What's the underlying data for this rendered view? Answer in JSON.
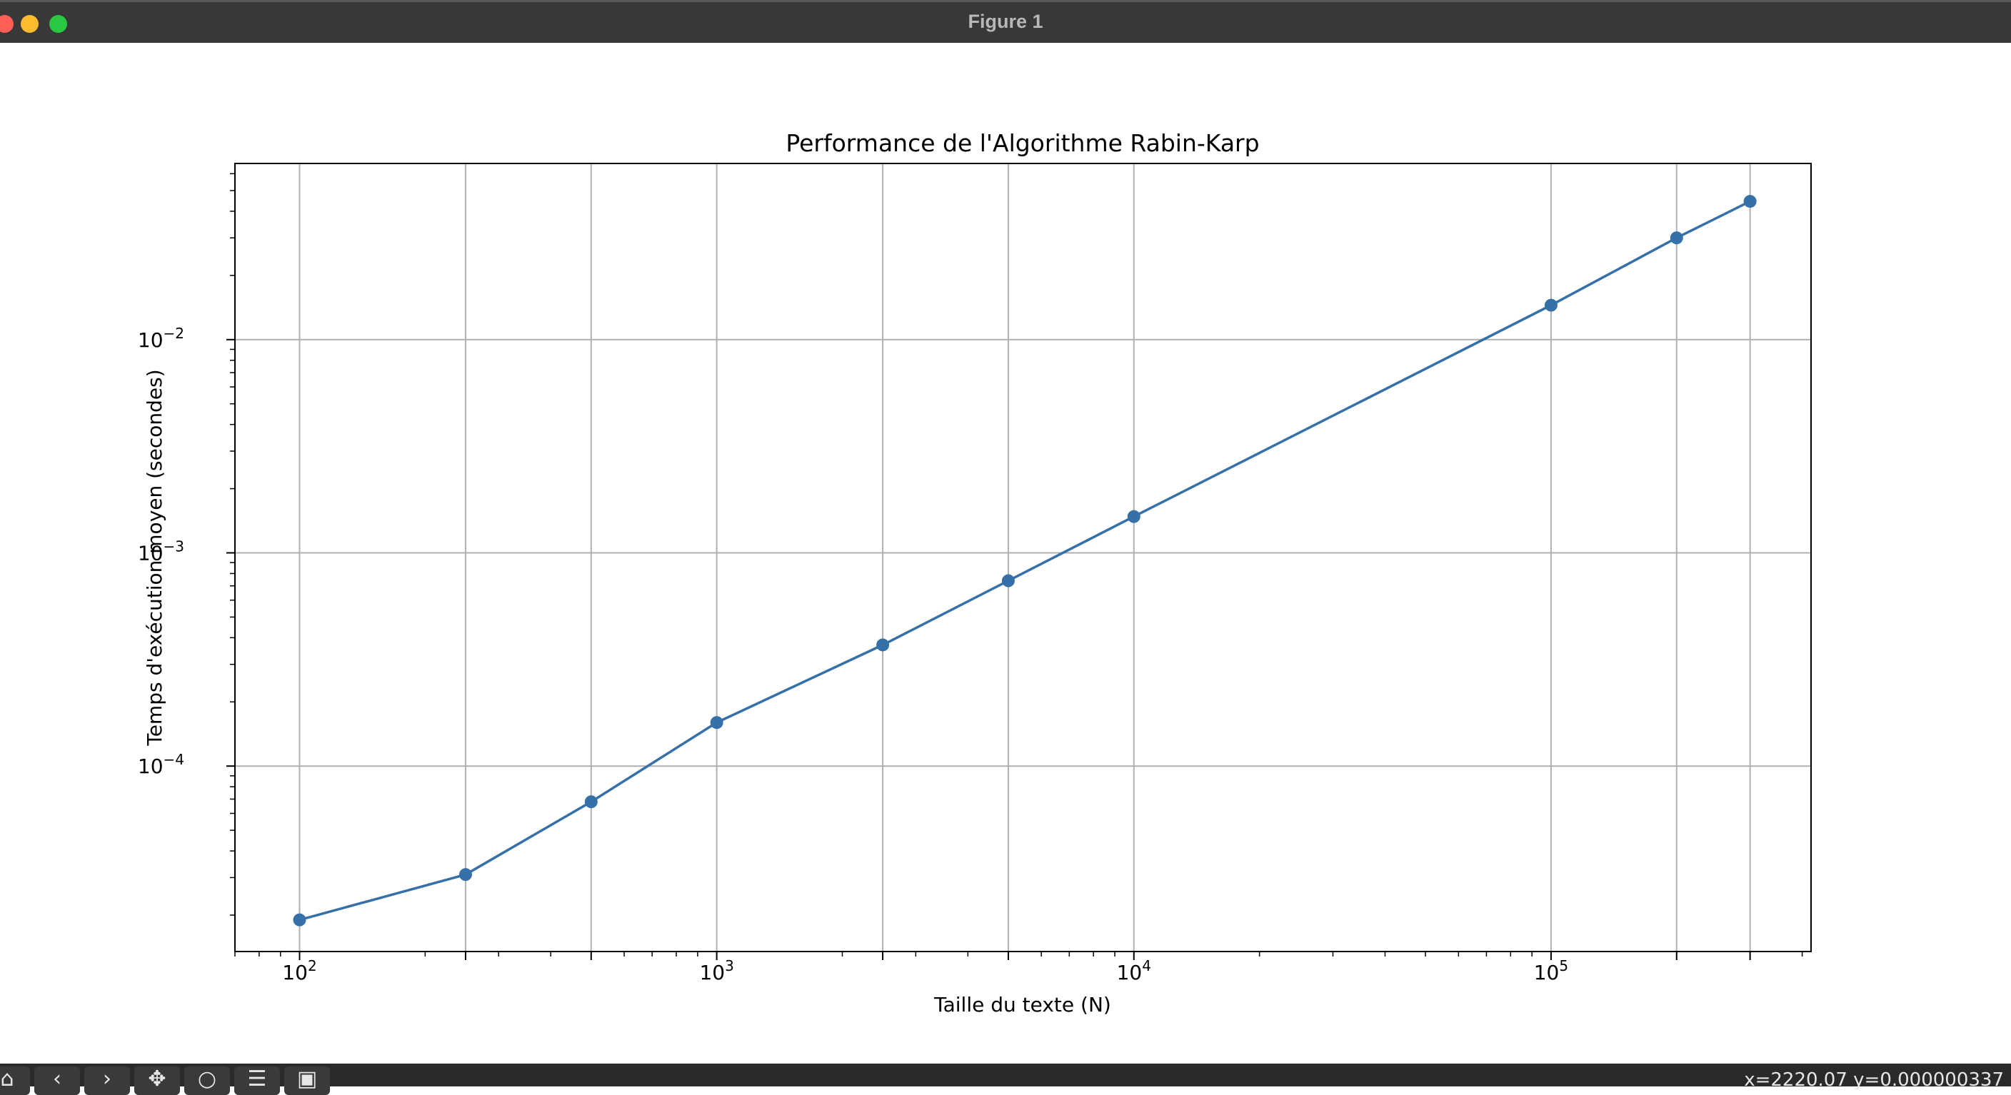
{
  "window": {
    "title": "Figure 1",
    "controls": [
      "close",
      "minimize",
      "maximize"
    ]
  },
  "toolbar": {
    "buttons": [
      {
        "name": "home-icon",
        "glyph": "⌂"
      },
      {
        "name": "back-icon",
        "glyph": "‹"
      },
      {
        "name": "forward-icon",
        "glyph": "›"
      },
      {
        "name": "pan-icon",
        "glyph": "✥"
      },
      {
        "name": "zoom-icon",
        "glyph": "○"
      },
      {
        "name": "configure-icon",
        "glyph": "☰"
      },
      {
        "name": "save-icon",
        "glyph": "▣"
      }
    ],
    "readout": "x=2220.07  y=0.000000337"
  },
  "chart_data": {
    "type": "line",
    "title": "Performance de l'Algorithme Rabin-Karp",
    "xlabel": "Taille du texte (N)",
    "ylabel": "Temps d'exécution moyen (secondes)",
    "xscale": "log",
    "yscale": "log",
    "xlim": [
      70,
      420000
    ],
    "ylim": [
      1.35e-05,
      0.067
    ],
    "xticks": [
      {
        "value": 100,
        "base": "10",
        "exp": "2"
      },
      {
        "value": 1000,
        "base": "10",
        "exp": "3"
      },
      {
        "value": 10000,
        "base": "10",
        "exp": "4"
      },
      {
        "value": 100000,
        "base": "10",
        "exp": "5"
      }
    ],
    "yticks": [
      {
        "value": 0.0001,
        "base": "10",
        "exp": "−4"
      },
      {
        "value": 0.001,
        "base": "10",
        "exp": "−3"
      },
      {
        "value": 0.01,
        "base": "10",
        "exp": "−2"
      }
    ],
    "grid": true,
    "color": "#3571a8",
    "series": [
      {
        "x": [
          100,
          250,
          500,
          1000,
          2500,
          5000,
          10000,
          100000,
          200000,
          300000
        ],
        "y": [
          1.9e-05,
          3.1e-05,
          6.8e-05,
          0.00016,
          0.00037,
          0.00074,
          0.00148,
          0.0145,
          0.03,
          0.0445
        ]
      }
    ]
  }
}
